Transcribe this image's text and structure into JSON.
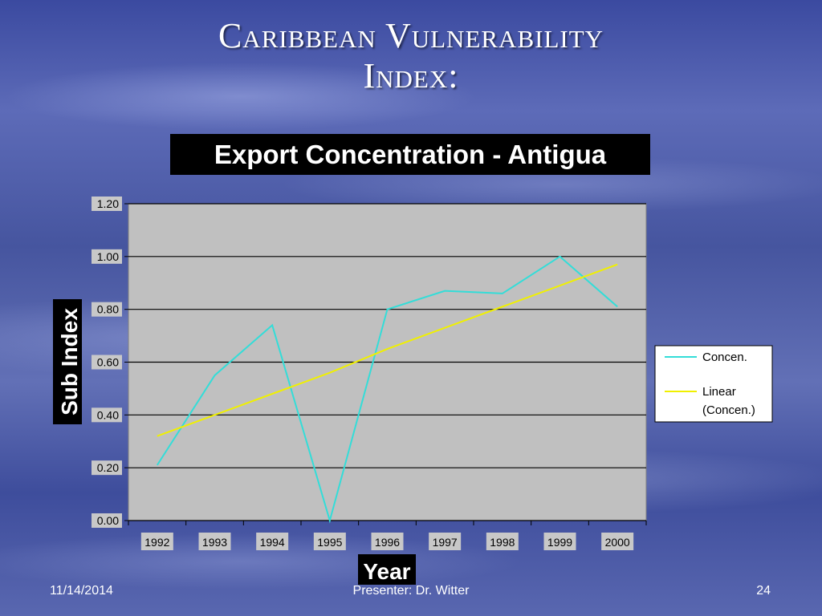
{
  "slide": {
    "title_line1": "Caribbean Vulnerability",
    "title_line2": "Index:"
  },
  "footer": {
    "date": "11/14/2014",
    "presenter": "Presenter: Dr. Witter",
    "page": "24"
  },
  "chart_data": {
    "type": "line",
    "title": "Export Concentration - Antigua",
    "xlabel": "Year",
    "ylabel": "Sub Index",
    "categories": [
      "1992",
      "1993",
      "1994",
      "1995",
      "1996",
      "1997",
      "1998",
      "1999",
      "2000"
    ],
    "ylim": [
      0,
      1.2
    ],
    "yticks": [
      "0.00",
      "0.20",
      "0.40",
      "0.60",
      "0.80",
      "1.00",
      "1.20"
    ],
    "grid": true,
    "legend_position": "right",
    "series": [
      {
        "name": "Concen.",
        "color": "#33ddd8",
        "values": [
          0.21,
          0.55,
          0.74,
          0.0,
          0.8,
          0.87,
          0.86,
          1.0,
          0.81
        ]
      },
      {
        "name": "Linear (Concen.)",
        "color": "#f0f000",
        "trendline_of": "Concen.",
        "values": [
          0.32,
          0.4,
          0.48,
          0.56,
          0.65,
          0.73,
          0.81,
          0.89,
          0.97
        ]
      }
    ]
  }
}
